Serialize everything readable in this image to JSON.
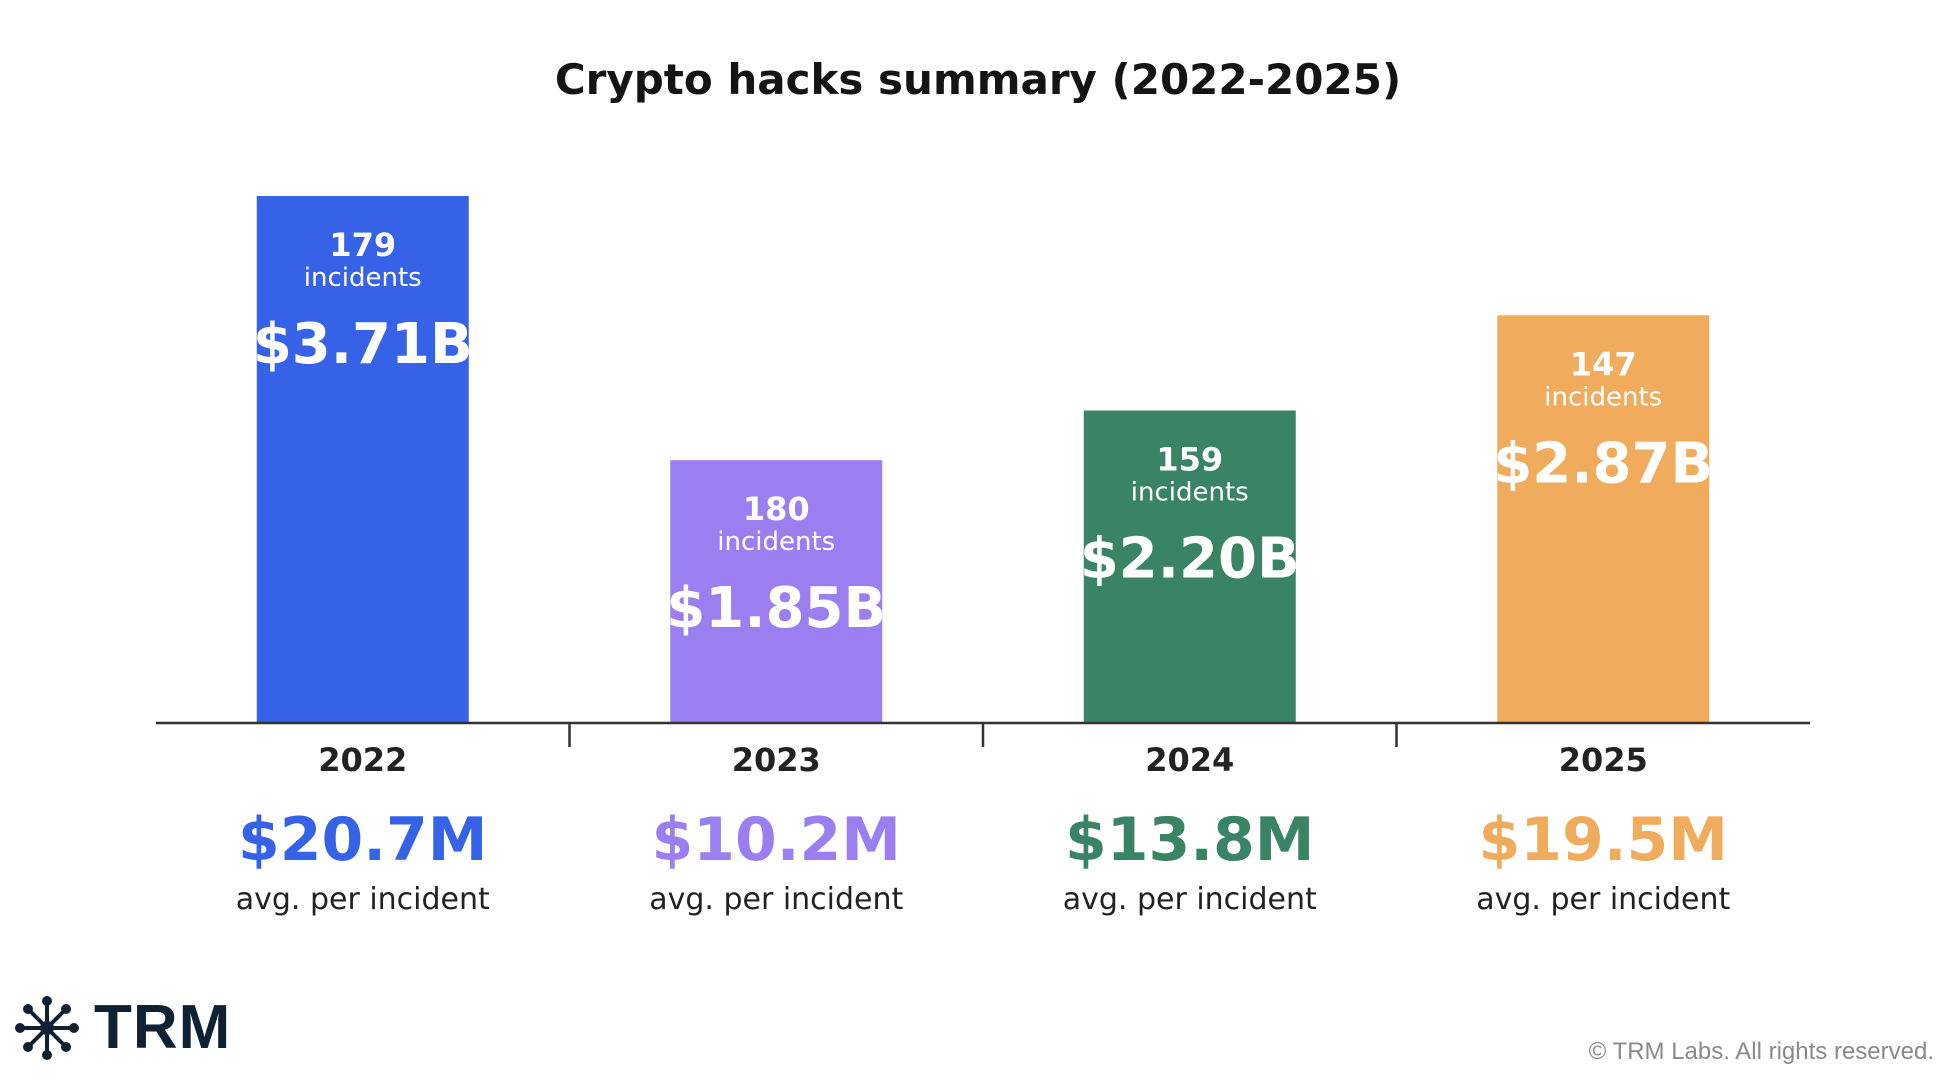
{
  "brand": {
    "name": "TRM",
    "copyright": "© TRM Labs. All rights reserved."
  },
  "chart_data": {
    "type": "bar",
    "title": "Crypto hacks summary (2022-2025)",
    "categories": [
      "2022",
      "2023",
      "2024",
      "2025"
    ],
    "values": [
      3.71,
      1.85,
      2.2,
      2.87
    ],
    "value_labels": [
      "$3.71B",
      "$1.85B",
      "$2.20B",
      "$2.87B"
    ],
    "incidents": [
      179,
      180,
      159,
      147
    ],
    "incidents_word": "incidents",
    "avg_per_incident": [
      "$20.7M",
      "$10.2M",
      "$13.8M",
      "$19.5M"
    ],
    "avg_caption": "avg. per incident",
    "colors": [
      "#3562e6",
      "#9b7ff0",
      "#3a8466",
      "#f0ab5c"
    ],
    "ylim": [
      0,
      3.71
    ],
    "grid": false
  }
}
